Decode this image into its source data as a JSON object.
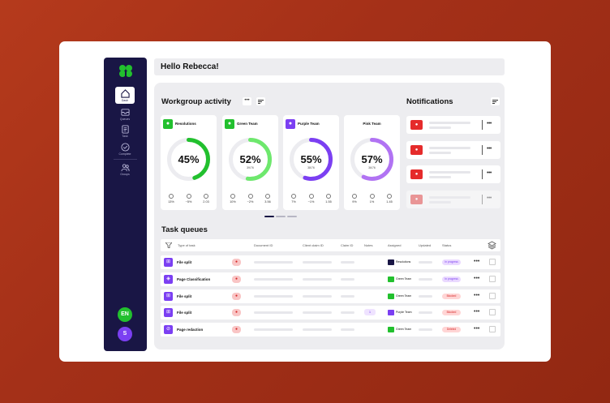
{
  "greeting": "Hello Rebecca!",
  "colors": {
    "accent": "#7b3ff2",
    "green": "#22c02e",
    "danger": "#e52b2b",
    "sidebar": "#191645"
  },
  "sidebar": {
    "logo_icon": "leaf-logo-icon",
    "items": [
      {
        "label": "Dash",
        "icon": "home-icon",
        "active": true
      },
      {
        "label": "Queues",
        "icon": "inbox-icon",
        "active": false
      },
      {
        "label": "Task",
        "icon": "document-icon",
        "active": false
      },
      {
        "label": "Complete",
        "icon": "check-circle-icon",
        "active": false
      },
      {
        "label": "Groups",
        "icon": "users-icon",
        "active": false
      }
    ],
    "lang": "EN",
    "user_initial": "S"
  },
  "workgroup": {
    "title": "Workgroup activity",
    "more": "•••",
    "teams": [
      {
        "name": "Resolutions",
        "percent": "45%",
        "value": 45,
        "sub": "",
        "color": "#22c02e",
        "stats": [
          "13%",
          "~5%",
          "2.03"
        ]
      },
      {
        "name": "Green Team",
        "percent": "52%",
        "value": 52,
        "sub": "39/76",
        "color": "#6ee86d",
        "stats": [
          "10%",
          "~2%",
          "3.56"
        ]
      },
      {
        "name": "Purple Team",
        "percent": "55%",
        "value": 55,
        "sub": "38/76",
        "color": "#7b3ff2",
        "stats": [
          "7%",
          "~1%",
          "1.55"
        ]
      },
      {
        "name": "Pink Team",
        "percent": "57%",
        "value": 57,
        "sub": "36/76",
        "color": "#b173f3",
        "stats": [
          "9%",
          "1%",
          "1.45"
        ]
      }
    ]
  },
  "notifications": {
    "title": "Notifications",
    "more": "•••",
    "count": 4
  },
  "task_queues": {
    "title": "Task queues",
    "columns": [
      "Type of task",
      "Document ID",
      "Client claim ID",
      "Claim ID",
      "Notes",
      "Assigned",
      "Updated",
      "Status"
    ],
    "rows": [
      {
        "task": "File split",
        "icon": "crop-icon",
        "assigned": "Resolutions",
        "assign_color": "#191645",
        "status": "In progress",
        "status_bg": "#ead9ff",
        "status_fg": "#7b3ff2",
        "note": ""
      },
      {
        "task": "Page Classification",
        "icon": "tag-icon",
        "assigned": "Green Team",
        "assign_color": "#22c02e",
        "status": "In progress",
        "status_bg": "#ead9ff",
        "status_fg": "#7b3ff2",
        "note": ""
      },
      {
        "task": "File split",
        "icon": "crop-icon",
        "assigned": "Green Team",
        "assign_color": "#22c02e",
        "status": "Blocked",
        "status_bg": "#ffd5d5",
        "status_fg": "#d62828",
        "note": ""
      },
      {
        "task": "File split",
        "icon": "crop-icon",
        "assigned": "Purple Team",
        "assign_color": "#7b3ff2",
        "status": "Blocked",
        "status_bg": "#ffd5d5",
        "status_fg": "#d62828",
        "note": "1"
      },
      {
        "task": "Page redaction",
        "icon": "block-icon",
        "assigned": "Green Team",
        "assign_color": "#22c02e",
        "status": "Deleted",
        "status_bg": "#ffd5d5",
        "status_fg": "#d62828",
        "note": ""
      }
    ],
    "row_more": "•••"
  }
}
